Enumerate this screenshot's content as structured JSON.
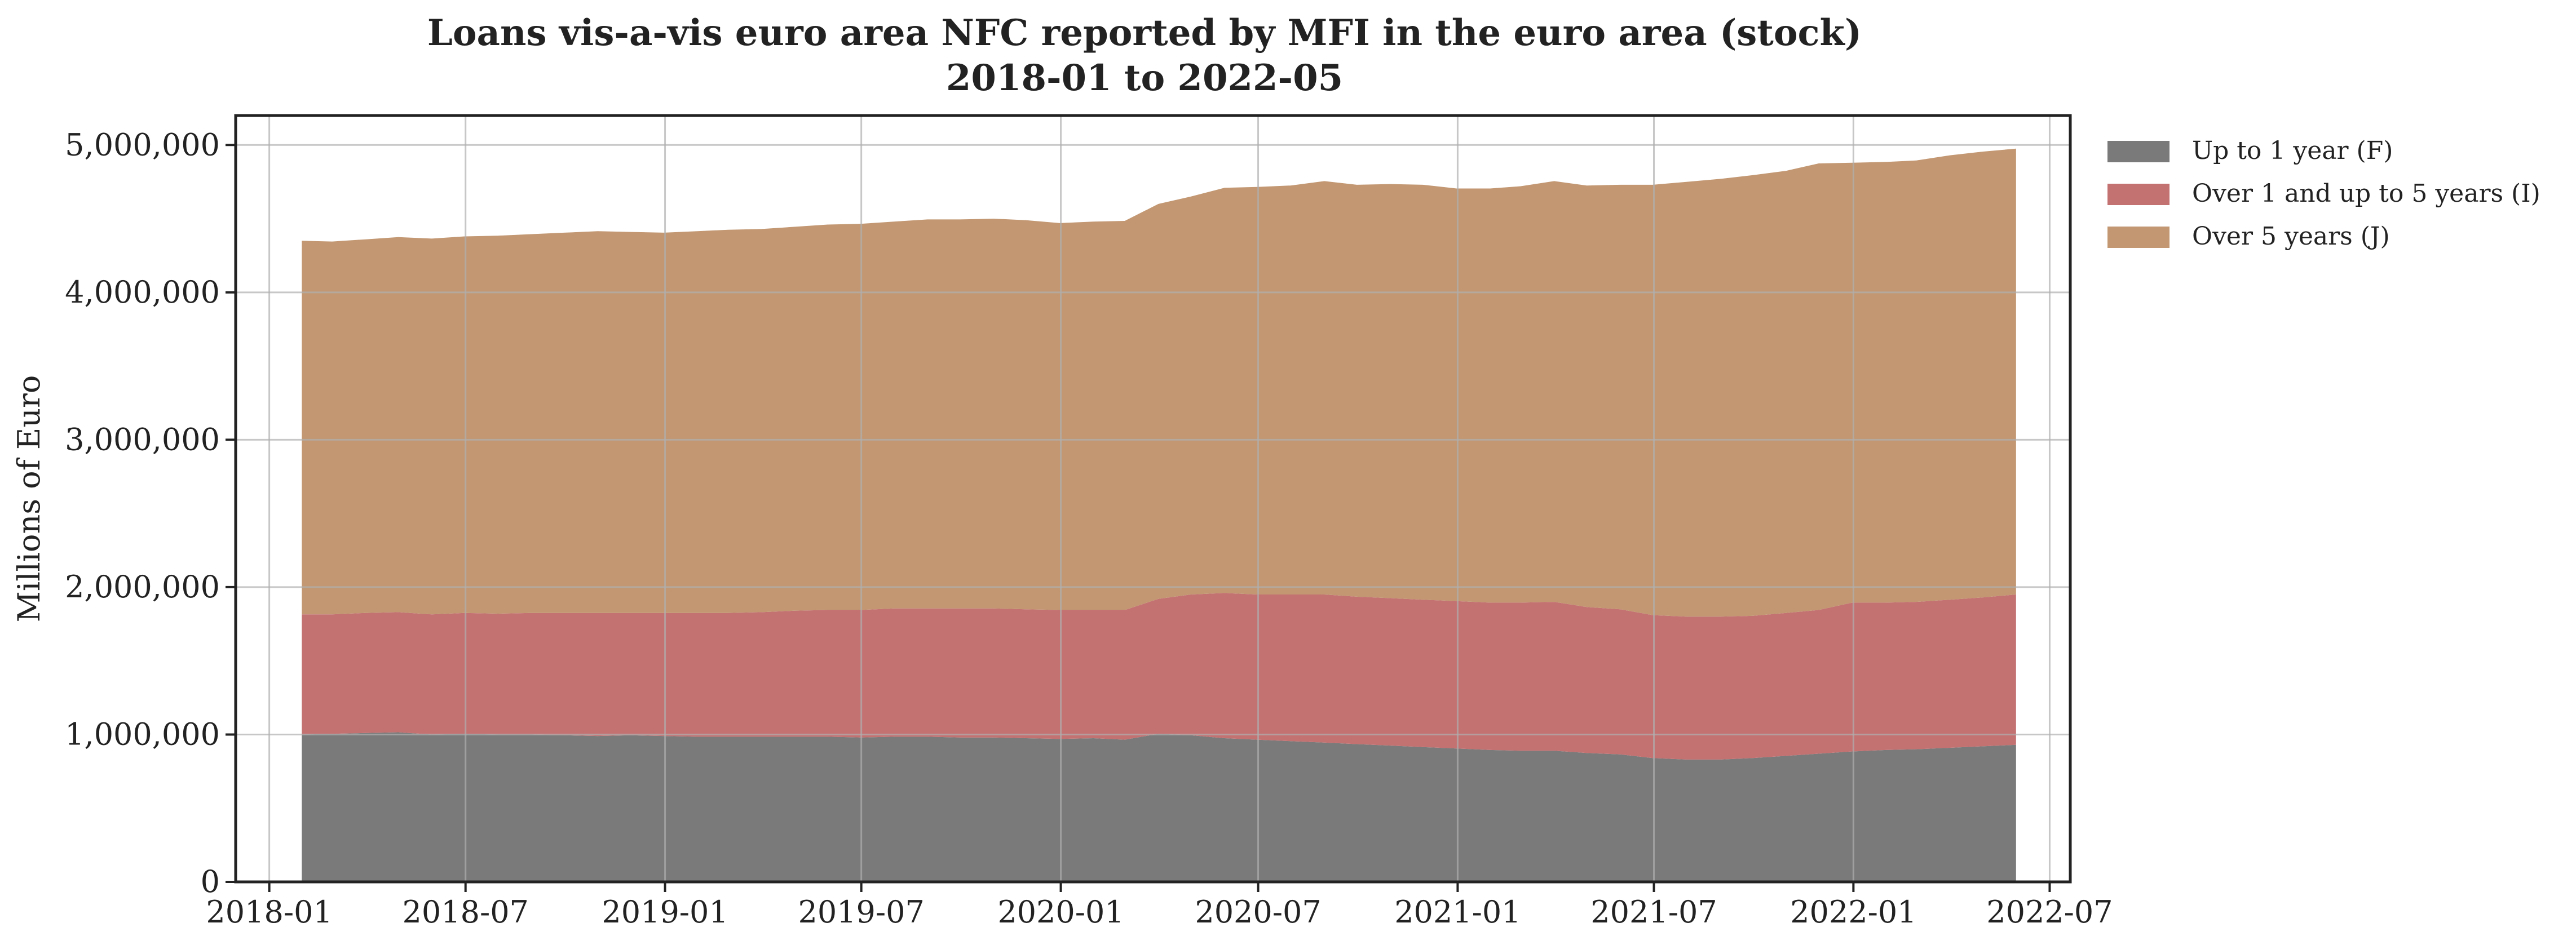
{
  "chart_data": {
    "type": "area",
    "stacked": true,
    "title": "Loans vis-a-vis euro area NFC reported by MFI in the euro area (stock)",
    "subtitle": "2018-01 to 2022-05",
    "ylabel": "Millions of Euro",
    "xlabel": "",
    "xlim": [
      "2017-12-01",
      "2022-07-20"
    ],
    "ylim": [
      0,
      5200000
    ],
    "yticks": [
      0,
      1000000,
      2000000,
      3000000,
      4000000,
      5000000
    ],
    "ytick_labels": [
      "0",
      "1,000,000",
      "2,000,000",
      "3,000,000",
      "4,000,000",
      "5,000,000"
    ],
    "xticks": [
      "2018-01-01",
      "2018-07-01",
      "2019-01-01",
      "2019-07-01",
      "2020-01-01",
      "2020-07-01",
      "2021-01-01",
      "2021-07-01",
      "2022-01-01",
      "2022-07-01"
    ],
    "xtick_labels": [
      "2018-01",
      "2018-07",
      "2019-01",
      "2019-07",
      "2020-01",
      "2020-07",
      "2021-01",
      "2021-07",
      "2022-01",
      "2022-07"
    ],
    "grid": true,
    "legend_position": "outside-top-right",
    "x": [
      "2018-01-31",
      "2018-02-28",
      "2018-03-31",
      "2018-04-30",
      "2018-05-31",
      "2018-06-30",
      "2018-07-31",
      "2018-08-31",
      "2018-09-30",
      "2018-10-31",
      "2018-11-30",
      "2018-12-31",
      "2019-01-31",
      "2019-02-28",
      "2019-03-31",
      "2019-04-30",
      "2019-05-31",
      "2019-06-30",
      "2019-07-31",
      "2019-08-31",
      "2019-09-30",
      "2019-10-31",
      "2019-11-30",
      "2019-12-31",
      "2020-01-31",
      "2020-02-29",
      "2020-03-31",
      "2020-04-30",
      "2020-05-31",
      "2020-06-30",
      "2020-07-31",
      "2020-08-31",
      "2020-09-30",
      "2020-10-31",
      "2020-11-30",
      "2020-12-31",
      "2021-01-31",
      "2021-02-28",
      "2021-03-31",
      "2021-04-30",
      "2021-05-31",
      "2021-06-30",
      "2021-07-31",
      "2021-08-31",
      "2021-09-30",
      "2021-10-31",
      "2021-11-30",
      "2021-12-31",
      "2022-01-31",
      "2022-02-28",
      "2022-03-31",
      "2022-04-30",
      "2022-05-31"
    ],
    "series": [
      {
        "name": "Up to 1 year (F)",
        "color": "#7a7a7a",
        "values": [
          1000000,
          1005000,
          1010000,
          1015000,
          1000000,
          1005000,
          1000000,
          1000000,
          995000,
          990000,
          995000,
          990000,
          985000,
          985000,
          985000,
          985000,
          985000,
          980000,
          985000,
          985000,
          980000,
          980000,
          975000,
          970000,
          975000,
          965000,
          1005000,
          995000,
          975000,
          965000,
          955000,
          945000,
          935000,
          925000,
          915000,
          905000,
          895000,
          890000,
          890000,
          875000,
          865000,
          840000,
          830000,
          830000,
          840000,
          855000,
          870000,
          885000,
          895000,
          900000,
          910000,
          920000,
          930000
        ]
      },
      {
        "name": "Over 1 and up to 5 years (I)",
        "color": "#c47172",
        "values": [
          815000,
          810000,
          815000,
          815000,
          815000,
          820000,
          820000,
          825000,
          830000,
          835000,
          830000,
          835000,
          840000,
          840000,
          845000,
          855000,
          860000,
          865000,
          870000,
          870000,
          875000,
          875000,
          875000,
          875000,
          870000,
          880000,
          915000,
          955000,
          985000,
          985000,
          995000,
          1005000,
          1000000,
          1000000,
          1000000,
          1000000,
          1000000,
          1005000,
          1010000,
          990000,
          985000,
          970000,
          970000,
          970000,
          965000,
          970000,
          975000,
          1010000,
          1000000,
          1000000,
          1005000,
          1010000,
          1020000
        ]
      },
      {
        "name": "Over 5 years (J)",
        "color": "#c29772",
        "values": [
          2535000,
          2530000,
          2535000,
          2545000,
          2550000,
          2555000,
          2565000,
          2570000,
          2580000,
          2590000,
          2585000,
          2580000,
          2590000,
          2600000,
          2600000,
          2605000,
          2615000,
          2620000,
          2625000,
          2640000,
          2640000,
          2645000,
          2640000,
          2625000,
          2635000,
          2640000,
          2680000,
          2700000,
          2750000,
          2765000,
          2775000,
          2805000,
          2795000,
          2810000,
          2815000,
          2800000,
          2810000,
          2825000,
          2855000,
          2860000,
          2880000,
          2920000,
          2950000,
          2970000,
          2990000,
          3000000,
          3030000,
          2985000,
          2990000,
          2995000,
          3015000,
          3025000,
          3025000
        ]
      }
    ]
  }
}
